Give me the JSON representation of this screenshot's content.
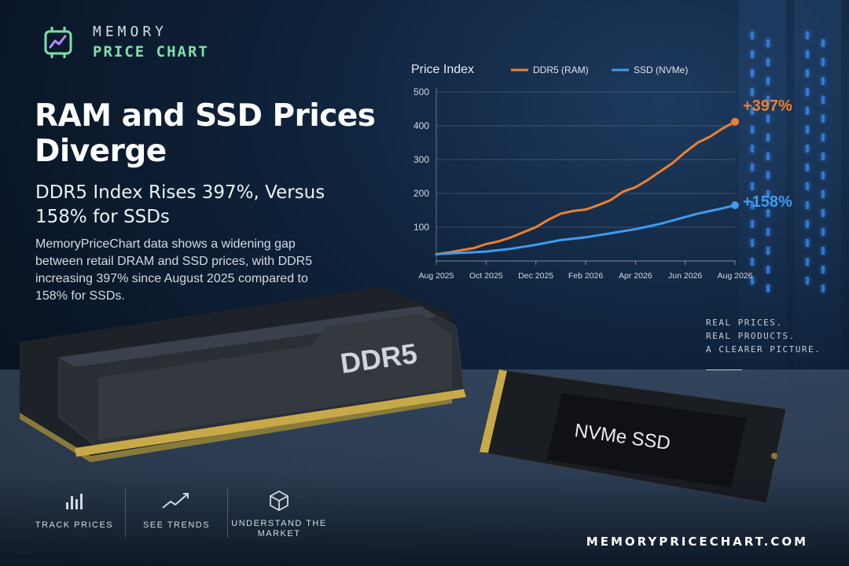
{
  "brand": {
    "line1": "MEMORY",
    "line2": "PRICE CHART",
    "accent": "#7ee0a8"
  },
  "headline": "RAM and SSD Prices Diverge",
  "subhead": "DDR5 Index Rises 397%, Versus 158% for SSDs",
  "body": "MemoryPriceChart data shows a widening gap between retail DRAM and SSD prices, with DDR5 increasing 397% since August 2025 compared to 158% for SSDs.",
  "tagline": {
    "line1": "REAL PRICES.",
    "line2": "REAL PRODUCTS.",
    "line3": "A CLEARER PICTURE."
  },
  "products": {
    "ram_label": "DDR5",
    "ssd_label": "NVMe SSD"
  },
  "features": [
    {
      "icon": "bar-chart-icon",
      "label": "TRACK PRICES"
    },
    {
      "icon": "trend-up-icon",
      "label": "SEE TRENDS"
    },
    {
      "icon": "cube-icon",
      "label": "UNDERSTAND THE MARKET"
    }
  ],
  "url": "MEMORYPRICECHART.COM",
  "chart_data": {
    "type": "line",
    "title": "Price Index",
    "x_ticks": [
      "Aug 2025",
      "Oct 2025",
      "Dec 2025",
      "Feb 2026",
      "Apr 2026",
      "Jun 2026",
      "Aug 2026"
    ],
    "y_ticks": [
      100,
      200,
      300,
      400,
      500
    ],
    "ylim": [
      0,
      500
    ],
    "legend_position": "top",
    "grid": true,
    "series": [
      {
        "name": "DDR5 (RAM)",
        "color": "#ef7f2e",
        "end_label": "+397%",
        "x": [
          0,
          0.5,
          1,
          1.5,
          2,
          2.5,
          3,
          3.5,
          4,
          4.5,
          5,
          5.5,
          6,
          6.5,
          7,
          7.5,
          8,
          8.5,
          9,
          9.5,
          10,
          10.5,
          11,
          11.5,
          12
        ],
        "values": [
          20,
          25,
          32,
          38,
          50,
          58,
          70,
          85,
          100,
          122,
          140,
          148,
          152,
          165,
          180,
          205,
          218,
          240,
          265,
          290,
          322,
          350,
          368,
          392,
          412
        ]
      },
      {
        "name": "SSD (NVMe)",
        "color": "#3f9bf0",
        "end_label": "+158%",
        "x": [
          0,
          0.5,
          1,
          1.5,
          2,
          2.5,
          3,
          3.5,
          4,
          4.5,
          5,
          5.5,
          6,
          6.5,
          7,
          7.5,
          8,
          8.5,
          9,
          9.5,
          10,
          10.5,
          11,
          11.5,
          12
        ],
        "values": [
          20,
          22,
          24,
          26,
          28,
          32,
          36,
          42,
          48,
          55,
          62,
          66,
          70,
          76,
          82,
          88,
          94,
          102,
          110,
          120,
          130,
          140,
          148,
          156,
          165
        ]
      }
    ]
  }
}
